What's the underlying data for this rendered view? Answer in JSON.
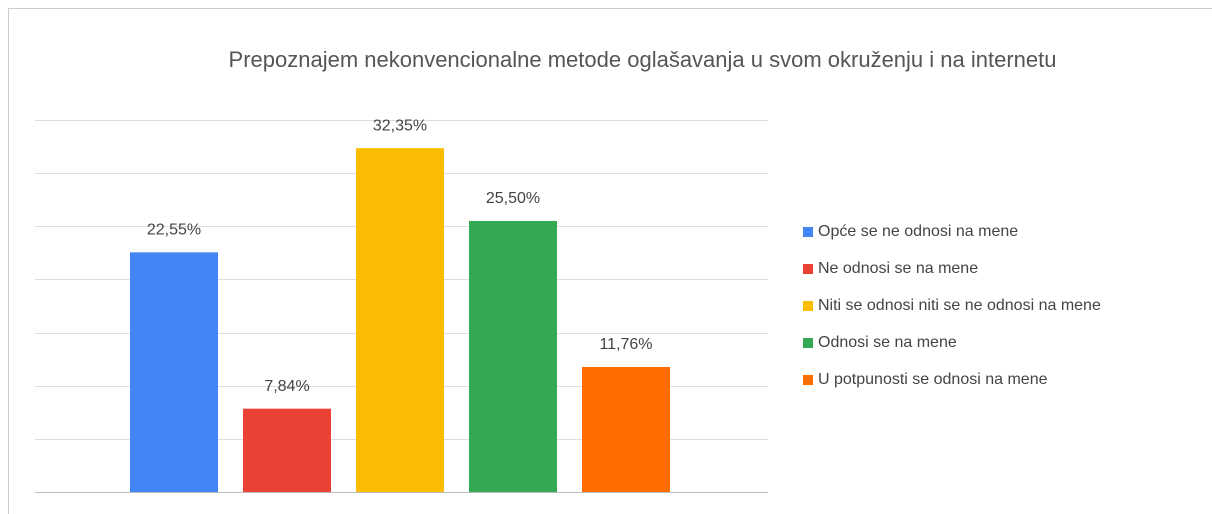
{
  "chart_data": {
    "type": "bar",
    "title": "Prepoznajem nekonvencionalne metode oglašavanja u svom okruženju i na internetu",
    "series": [
      {
        "name": "Opće se ne odnosi na mene",
        "color": "#4285f4",
        "values": [
          22.55
        ],
        "value_labels": [
          "22,55%"
        ]
      },
      {
        "name": "Ne odnosi se na mene",
        "color": "#ea4335",
        "values": [
          7.84
        ],
        "value_labels": [
          "7,84%"
        ]
      },
      {
        "name": "Niti se odnosi niti se ne odnosi na mene",
        "color": "#fbbc04",
        "values": [
          32.35
        ],
        "value_labels": [
          "32,35%"
        ]
      },
      {
        "name": "Odnosi se na mene",
        "color": "#34a853",
        "values": [
          25.5
        ],
        "value_labels": [
          "25,50%"
        ]
      },
      {
        "name": "U potpunosti se odnosi na mene",
        "color": "#ff6d01",
        "values": [
          11.76
        ],
        "value_labels": [
          "11,76%"
        ]
      }
    ],
    "ylim": [
      0,
      35
    ],
    "yticks": [
      0,
      5,
      10,
      15,
      20,
      25,
      30,
      35
    ],
    "grid": true,
    "legend": "right"
  }
}
